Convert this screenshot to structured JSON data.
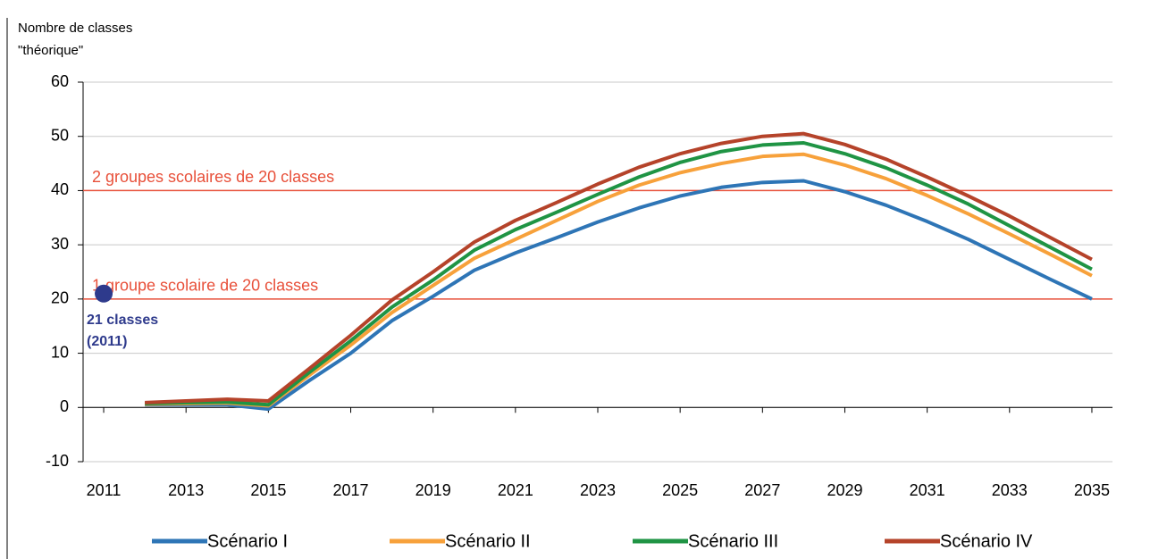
{
  "chart_data": {
    "type": "line",
    "ylabel": [
      "Nombre de classes",
      "\"théorique\""
    ],
    "x": [
      2012,
      2013,
      2014,
      2015,
      2016,
      2017,
      2018,
      2019,
      2020,
      2021,
      2022,
      2023,
      2024,
      2025,
      2026,
      2027,
      2028,
      2029,
      2030,
      2031,
      2032,
      2033,
      2034,
      2035
    ],
    "xlim": [
      2010.5,
      2035.5
    ],
    "xticks": [
      2011,
      2013,
      2015,
      2017,
      2019,
      2021,
      2023,
      2025,
      2027,
      2029,
      2031,
      2033,
      2035
    ],
    "ylim": [
      -10,
      60
    ],
    "yticks": [
      -10,
      0,
      10,
      20,
      30,
      40,
      50,
      60
    ],
    "grid": true,
    "series": [
      {
        "name": "Scénario I",
        "color": "#2e75b6",
        "values": [
          0.5,
          0.5,
          0.5,
          -0.3,
          5,
          10,
          16,
          20.5,
          25.3,
          28.5,
          31.3,
          34.2,
          36.8,
          39,
          40.6,
          41.5,
          41.8,
          39.8,
          37.3,
          34.3,
          31,
          27.3,
          23.6,
          20
        ]
      },
      {
        "name": "Scénario II",
        "color": "#f7a13b",
        "values": [
          0.6,
          0.7,
          0.8,
          0.3,
          6,
          11.5,
          17.5,
          22.5,
          27.5,
          31,
          34.5,
          38,
          41,
          43.3,
          45,
          46.3,
          46.7,
          44.7,
          42.2,
          39.1,
          35.7,
          32,
          28.2,
          24.3
        ]
      },
      {
        "name": "Scénario III",
        "color": "#1f9444",
        "values": [
          0.7,
          0.9,
          1,
          0.5,
          6.5,
          12.3,
          18.5,
          23.5,
          29,
          32.8,
          36,
          39.3,
          42.5,
          45.2,
          47.2,
          48.4,
          48.8,
          46.8,
          44.2,
          41,
          37.5,
          33.5,
          29.5,
          25.5
        ]
      },
      {
        "name": "Scénario IV",
        "color": "#b5432a",
        "values": [
          0.9,
          1.2,
          1.5,
          1.2,
          7.2,
          13.3,
          19.8,
          25,
          30.5,
          34.5,
          37.8,
          41.2,
          44.3,
          46.8,
          48.7,
          50,
          50.5,
          48.5,
          45.8,
          42.5,
          39,
          35.3,
          31.3,
          27.3
        ]
      }
    ],
    "reference_lines": [
      {
        "value": 40,
        "label": "2 groupes scolaires de 20 classes",
        "color": "#e8503a"
      },
      {
        "value": 20,
        "label": "1 groupe scolaire de 20 classes",
        "color": "#e8503a"
      }
    ],
    "point": {
      "x": 2011,
      "value": 21,
      "label": [
        "21 classes",
        "(2011)"
      ],
      "color": "#2e3a8c"
    }
  }
}
